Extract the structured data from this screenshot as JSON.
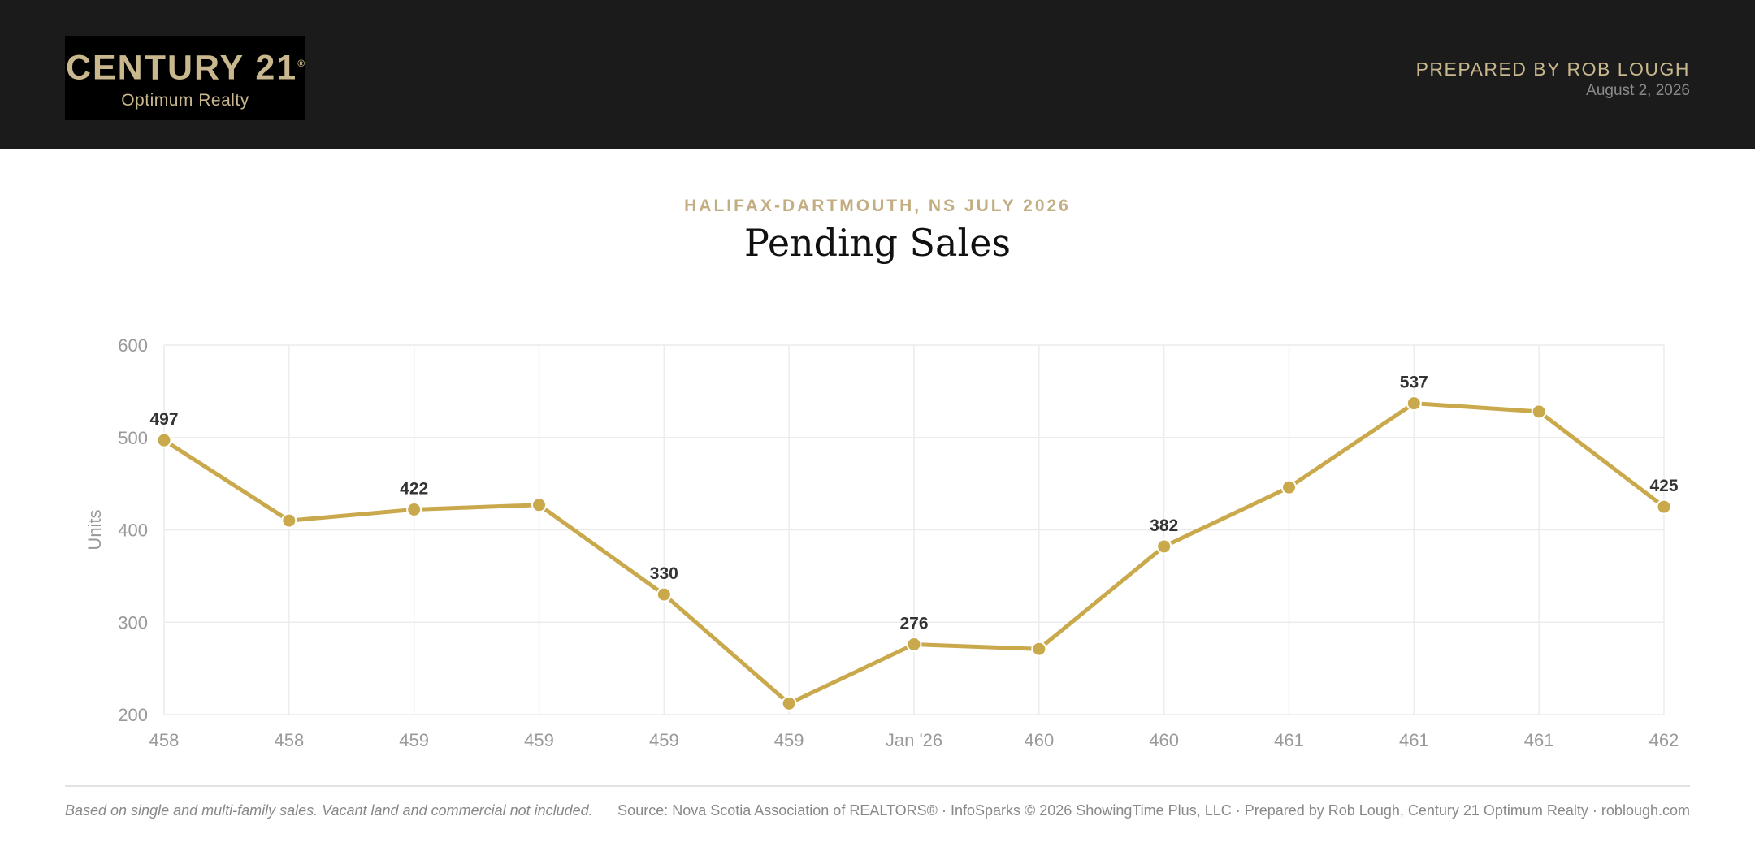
{
  "header": {
    "logo_main": "CENTURY 21",
    "logo_registered": "®",
    "logo_sub": "Optimum Realty",
    "prepared_by": "PREPARED BY ROB LOUGH",
    "date": "August 2, 2026"
  },
  "report": {
    "eyebrow": "HALIFAX-DARTMOUTH, NS JULY 2026",
    "title": "Pending Sales"
  },
  "chart_data": {
    "type": "line",
    "ylabel": "Units",
    "xlabel": "",
    "categories": [
      "458",
      "458",
      "459",
      "459",
      "459",
      "459",
      "Jan '26",
      "460",
      "460",
      "461",
      "461",
      "461",
      "462"
    ],
    "values": [
      497,
      410,
      422,
      427,
      330,
      212,
      276,
      271,
      382,
      446,
      537,
      528,
      425
    ],
    "labeled_indices": [
      0,
      2,
      4,
      6,
      8,
      10,
      12
    ],
    "ylim": [
      200,
      600
    ],
    "yticks": [
      200,
      300,
      400,
      500,
      600
    ],
    "grid": true,
    "legend": "none",
    "line_color": "#c9a94c",
    "grid_color": "#ececec"
  },
  "footer": {
    "note": "Based on single and multi-family sales. Vacant land and commercial not included.",
    "source": "Source: Nova Scotia Association of REALTORS® · InfoSparks © 2026 ShowingTime Plus, LLC · Prepared by Rob Lough, Century 21 Optimum Realty · roblough.com"
  }
}
